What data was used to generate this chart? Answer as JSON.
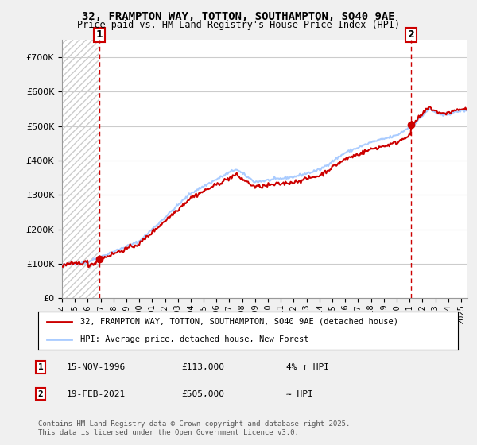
{
  "title_line1": "32, FRAMPTON WAY, TOTTON, SOUTHAMPTON, SO40 9AE",
  "title_line2": "Price paid vs. HM Land Registry's House Price Index (HPI)",
  "legend_label1": "32, FRAMPTON WAY, TOTTON, SOUTHAMPTON, SO40 9AE (detached house)",
  "legend_label2": "HPI: Average price, detached house, New Forest",
  "annotation1_box": "1",
  "annotation1_date": "15-NOV-1996",
  "annotation1_price": "£113,000",
  "annotation1_note": "4% ↑ HPI",
  "annotation2_box": "2",
  "annotation2_date": "19-FEB-2021",
  "annotation2_price": "£505,000",
  "annotation2_note": "≈ HPI",
  "copyright": "Contains HM Land Registry data © Crown copyright and database right 2025.\nThis data is licensed under the Open Government Licence v3.0.",
  "ylim": [
    0,
    750000
  ],
  "yticks": [
    0,
    100000,
    200000,
    300000,
    400000,
    500000,
    600000,
    700000
  ],
  "xlim_start": 1994.0,
  "xlim_end": 2025.5,
  "hatch_end": 1996.88,
  "vline1_x": 1996.88,
  "vline2_x": 2021.13,
  "marker1_x": 1996.88,
  "marker1_y": 113000,
  "marker2_x": 2021.13,
  "marker2_y": 505000,
  "bg_color": "#f0f0f0",
  "plot_bg_color": "#ffffff",
  "line1_color": "#cc0000",
  "line2_color": "#aaccff",
  "vline_color": "#cc0000",
  "hatch_color": "#cccccc"
}
